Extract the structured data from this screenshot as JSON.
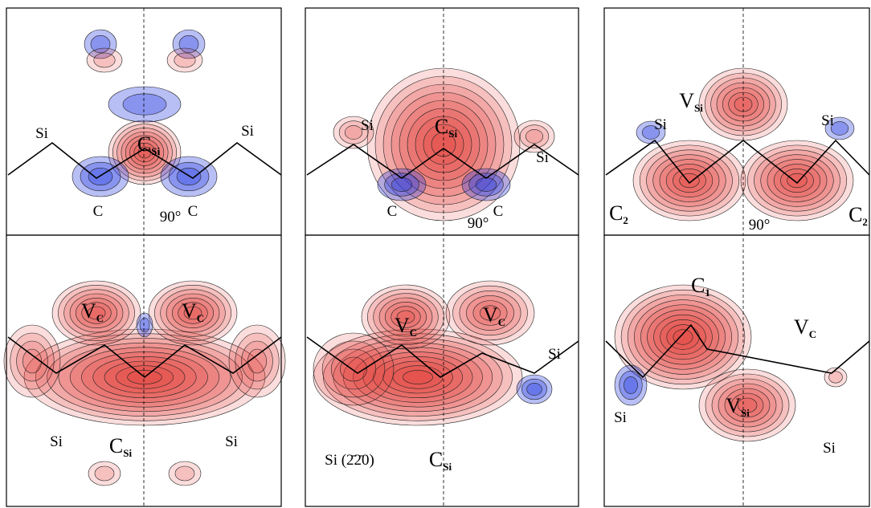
{
  "panels": [
    {
      "labels": [
        {
          "text": "C",
          "sub": "Si"
        },
        {
          "text": "Si"
        },
        {
          "text": "Si"
        },
        {
          "text": "C"
        },
        {
          "text": "C"
        },
        {
          "text": "90°"
        }
      ]
    },
    {
      "labels": [
        {
          "text": "C",
          "sub": "Si"
        },
        {
          "text": "Si"
        },
        {
          "text": "Si"
        },
        {
          "text": "C"
        },
        {
          "text": "C"
        },
        {
          "text": "90°"
        }
      ]
    },
    {
      "labels": [
        {
          "text": "V",
          "sub": "Si"
        },
        {
          "text": "Si"
        },
        {
          "text": "Si"
        },
        {
          "text": "C",
          "sub": "2"
        },
        {
          "text": "C",
          "sub": "2"
        },
        {
          "text": "90°"
        }
      ]
    },
    {
      "labels": [
        {
          "text": "V",
          "sub": "C"
        },
        {
          "text": "V",
          "sub": "C"
        },
        {
          "text": "Si"
        },
        {
          "text": "C",
          "sub": "Si"
        },
        {
          "text": "Si"
        }
      ]
    },
    {
      "labels": [
        {
          "text": "V",
          "sub": "C"
        },
        {
          "text": "V",
          "sub": "C"
        },
        {
          "text": "Si"
        },
        {
          "text": "Si (2̄2̄0)"
        },
        {
          "text": "C",
          "sub": "Si"
        }
      ]
    },
    {
      "labels": [
        {
          "text": "C",
          "sub": "1"
        },
        {
          "text": "V",
          "sub": "C"
        },
        {
          "text": "V",
          "sub": "Si"
        },
        {
          "text": "Si"
        },
        {
          "text": "Si"
        }
      ]
    }
  ]
}
